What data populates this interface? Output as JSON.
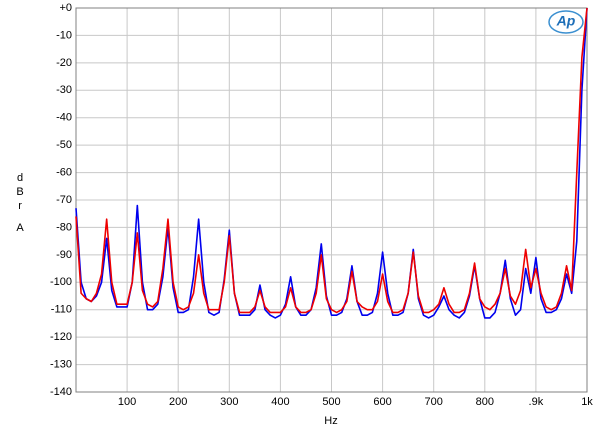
{
  "chart_data": {
    "type": "line",
    "logo": "Ap",
    "xlabel": "Hz",
    "ylabel": "dBr",
    "ylabel_weighting": "A",
    "x": [
      0,
      10,
      20,
      30,
      40,
      50,
      60,
      70,
      80,
      90,
      100,
      110,
      120,
      130,
      140,
      150,
      160,
      170,
      180,
      190,
      200,
      210,
      220,
      230,
      240,
      250,
      260,
      270,
      280,
      290,
      300,
      310,
      320,
      330,
      340,
      350,
      360,
      370,
      380,
      390,
      400,
      410,
      420,
      430,
      440,
      450,
      460,
      470,
      480,
      490,
      500,
      510,
      520,
      530,
      540,
      550,
      560,
      570,
      580,
      590,
      600,
      610,
      620,
      630,
      640,
      650,
      660,
      670,
      680,
      690,
      700,
      710,
      720,
      730,
      740,
      750,
      760,
      770,
      780,
      790,
      800,
      810,
      820,
      830,
      840,
      850,
      860,
      870,
      880,
      890,
      900,
      910,
      920,
      930,
      940,
      950,
      960,
      970,
      980,
      990,
      1000
    ],
    "series": [
      {
        "color": "#0000ee",
        "values": [
          -73,
          -100,
          -106,
          -107,
          -105,
          -100,
          -84,
          -103,
          -109,
          -109,
          -109,
          -100,
          -72,
          -100,
          -110,
          -110,
          -108,
          -98,
          -80,
          -102,
          -111,
          -111,
          -110,
          -98,
          -77,
          -100,
          -111,
          -112,
          -111,
          -99,
          -81,
          -104,
          -112,
          -112,
          -112,
          -110,
          -101,
          -110,
          -112,
          -113,
          -112,
          -108,
          -98,
          -109,
          -112,
          -112,
          -110,
          -102,
          -86,
          -105,
          -112,
          -112,
          -111,
          -106,
          -94,
          -107,
          -112,
          -112,
          -111,
          -104,
          -89,
          -104,
          -112,
          -112,
          -111,
          -104,
          -88,
          -106,
          -112,
          -113,
          -112,
          -109,
          -105,
          -110,
          -112,
          -113,
          -111,
          -105,
          -94,
          -106,
          -113,
          -113,
          -111,
          -104,
          -92,
          -106,
          -112,
          -110,
          -95,
          -104,
          -91,
          -106,
          -111,
          -111,
          -110,
          -106,
          -97,
          -104,
          -85,
          -30,
          0
        ]
      },
      {
        "color": "#ee0000",
        "values": [
          -76,
          -104,
          -106,
          -107,
          -104,
          -97,
          -77,
          -100,
          -108,
          -108,
          -108,
          -100,
          -82,
          -103,
          -108,
          -109,
          -107,
          -95,
          -77,
          -100,
          -109,
          -110,
          -109,
          -104,
          -90,
          -104,
          -110,
          -110,
          -110,
          -100,
          -83,
          -104,
          -111,
          -111,
          -111,
          -109,
          -103,
          -109,
          -111,
          -111,
          -111,
          -109,
          -102,
          -109,
          -111,
          -111,
          -110,
          -104,
          -90,
          -106,
          -110,
          -111,
          -110,
          -107,
          -96,
          -107,
          -109,
          -110,
          -110,
          -107,
          -97,
          -107,
          -111,
          -111,
          -110,
          -104,
          -89,
          -105,
          -111,
          -111,
          -110,
          -108,
          -102,
          -108,
          -111,
          -111,
          -110,
          -104,
          -93,
          -106,
          -109,
          -110,
          -108,
          -104,
          -95,
          -105,
          -108,
          -103,
          -88,
          -102,
          -95,
          -104,
          -109,
          -110,
          -109,
          -104,
          -94,
          -103,
          -60,
          -18,
          0
        ]
      }
    ],
    "xlim": [
      0,
      1000
    ],
    "xticks": [
      100,
      200,
      300,
      400,
      500,
      600,
      700,
      800,
      {
        "value": 900,
        "label": ".9k"
      },
      {
        "value": 1000,
        "label": "1k"
      }
    ],
    "ylim": [
      -140,
      0
    ],
    "yticks": [
      {
        "value": 0,
        "label": "+0"
      },
      -10,
      -20,
      -30,
      -40,
      -50,
      -60,
      -70,
      -80,
      -90,
      -100,
      -110,
      -120,
      -130,
      -140
    ],
    "grid": true
  }
}
